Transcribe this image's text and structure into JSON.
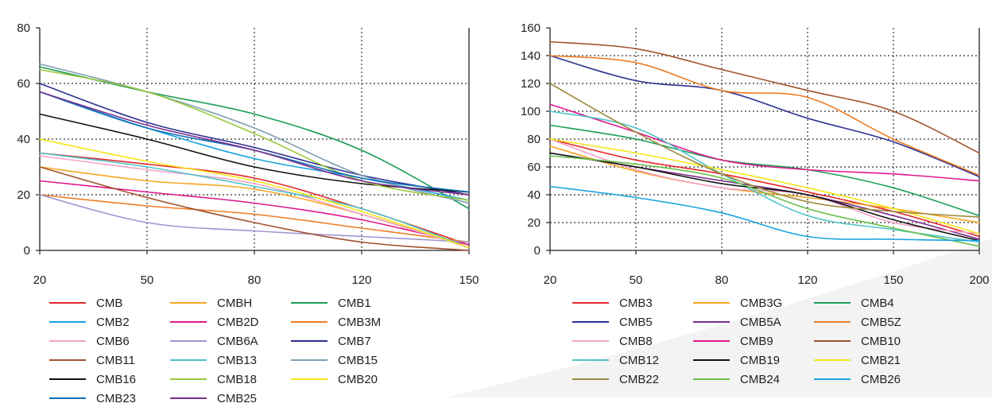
{
  "chart_data": [
    {
      "type": "line",
      "title": "",
      "xlabel": "",
      "ylabel": "",
      "x_ticks": [
        "20",
        "50",
        "80",
        "120",
        "150"
      ],
      "y_ticks": [
        "0",
        "20",
        "40",
        "60",
        "80"
      ],
      "ylim": [
        0,
        80
      ],
      "grid": true,
      "legend_position": "bottom",
      "series": [
        {
          "name": "CMB",
          "color": "#e3262a",
          "values": [
            35,
            31,
            26,
            15,
            2
          ]
        },
        {
          "name": "CMBH",
          "color": "#f5a623",
          "values": [
            30,
            25,
            22,
            13,
            1
          ]
        },
        {
          "name": "CMB1",
          "color": "#1a9e55",
          "values": [
            66,
            57,
            49,
            36,
            15
          ]
        },
        {
          "name": "CMB2",
          "color": "#1aa3e0",
          "values": [
            57,
            44,
            33,
            26,
            18
          ]
        },
        {
          "name": "CMB2D",
          "color": "#e0188c",
          "values": [
            25,
            21,
            17,
            11,
            2
          ]
        },
        {
          "name": "CMB3M",
          "color": "#ee7d25",
          "values": [
            20,
            16,
            13,
            8,
            3
          ]
        },
        {
          "name": "CMB6",
          "color": "#f4a3c8",
          "values": [
            34,
            29,
            24,
            13,
            1
          ]
        },
        {
          "name": "CMB6A",
          "color": "#9e97cf",
          "values": [
            20,
            10,
            7,
            5,
            3
          ]
        },
        {
          "name": "CMB7",
          "color": "#2e3192",
          "values": [
            60,
            46,
            37,
            27,
            20
          ]
        },
        {
          "name": "CMB11",
          "color": "#a0522d",
          "values": [
            30,
            19,
            10,
            3,
            0
          ]
        },
        {
          "name": "CMB13",
          "color": "#4fc3c8",
          "values": [
            35,
            30,
            23,
            15,
            1
          ]
        },
        {
          "name": "CMB15",
          "color": "#7f9fb0",
          "values": [
            67,
            57,
            44,
            27,
            17
          ]
        },
        {
          "name": "CMB16",
          "color": "#111111",
          "values": [
            49,
            40,
            30,
            24,
            21
          ]
        },
        {
          "name": "CMB18",
          "color": "#9ac83c",
          "values": [
            65,
            57,
            42,
            25,
            18
          ]
        },
        {
          "name": "CMB20",
          "color": "#f5e616",
          "values": [
            40,
            32,
            25,
            14,
            1
          ]
        },
        {
          "name": "CMB23",
          "color": "#0a6eb4",
          "values": [
            57,
            44,
            36,
            26,
            21
          ]
        },
        {
          "name": "CMB25",
          "color": "#7b2d8e",
          "values": [
            57,
            45,
            36,
            25,
            20
          ]
        }
      ]
    },
    {
      "type": "line",
      "title": "",
      "xlabel": "",
      "ylabel": "",
      "x_ticks": [
        "20",
        "50",
        "80",
        "120",
        "150",
        "200"
      ],
      "y_ticks": [
        "0",
        "20",
        "40",
        "60",
        "80",
        "100",
        "120",
        "140",
        "160"
      ],
      "ylim": [
        0,
        160
      ],
      "grid": true,
      "legend_position": "bottom",
      "series": [
        {
          "name": "CMB3",
          "color": "#e3262a",
          "values": [
            80,
            65,
            55,
            42,
            28,
            10
          ]
        },
        {
          "name": "CMB3G",
          "color": "#f5a623",
          "values": [
            75,
            57,
            45,
            38,
            30,
            20
          ]
        },
        {
          "name": "CMB4",
          "color": "#1a9e55",
          "values": [
            90,
            80,
            65,
            58,
            45,
            25
          ]
        },
        {
          "name": "CMB5",
          "color": "#2e3192",
          "values": [
            140,
            122,
            115,
            95,
            78,
            53
          ]
        },
        {
          "name": "CMB5A",
          "color": "#7b2d8e",
          "values": [
            70,
            60,
            50,
            40,
            25,
            8
          ]
        },
        {
          "name": "CMB5Z",
          "color": "#ee7d25",
          "values": [
            140,
            135,
            115,
            110,
            80,
            54
          ]
        },
        {
          "name": "CMB8",
          "color": "#f4a3c8",
          "values": [
            80,
            58,
            45,
            40,
            20,
            12
          ]
        },
        {
          "name": "CMB9",
          "color": "#e0188c",
          "values": [
            105,
            85,
            65,
            58,
            55,
            50
          ]
        },
        {
          "name": "CMB10",
          "color": "#a0522d",
          "values": [
            150,
            145,
            130,
            115,
            100,
            70
          ]
        },
        {
          "name": "CMB12",
          "color": "#4fc3c8",
          "values": [
            100,
            88,
            55,
            25,
            15,
            6
          ]
        },
        {
          "name": "CMB19",
          "color": "#111111",
          "values": [
            70,
            60,
            48,
            40,
            22,
            7
          ]
        },
        {
          "name": "CMB21",
          "color": "#f5e616",
          "values": [
            80,
            70,
            58,
            45,
            30,
            12
          ]
        },
        {
          "name": "CMB22",
          "color": "#9c8a3c",
          "values": [
            120,
            85,
            55,
            35,
            28,
            24
          ]
        },
        {
          "name": "CMB24",
          "color": "#6cc04a",
          "values": [
            68,
            62,
            52,
            30,
            16,
            3
          ]
        },
        {
          "name": "CMB26",
          "color": "#1aa3e0",
          "values": [
            46,
            38,
            27,
            10,
            8,
            7
          ]
        }
      ]
    }
  ]
}
